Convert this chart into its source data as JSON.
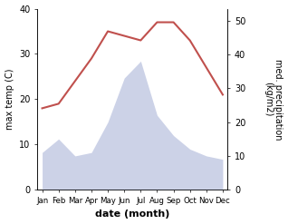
{
  "months": [
    "Jan",
    "Feb",
    "Mar",
    "Apr",
    "May",
    "Jun",
    "Jul",
    "Aug",
    "Sep",
    "Oct",
    "Nov",
    "Dec"
  ],
  "temperature": [
    18,
    19,
    24,
    29,
    35,
    34,
    33,
    37,
    37,
    33,
    27,
    21
  ],
  "precipitation": [
    11,
    15,
    10,
    11,
    20,
    33,
    38,
    22,
    16,
    12,
    10,
    9
  ],
  "temp_color": "#c0504d",
  "precip_color_fill": "#aab4d8",
  "temp_ylim": [
    0,
    40
  ],
  "precip_ylim": [
    0,
    53.5
  ],
  "xlabel": "date (month)",
  "ylabel_left": "max temp (C)",
  "ylabel_right": "med. precipitation\n(kg/m2)",
  "temp_yticks": [
    0,
    10,
    20,
    30,
    40
  ],
  "precip_yticks": [
    0,
    10,
    20,
    30,
    40,
    50
  ]
}
